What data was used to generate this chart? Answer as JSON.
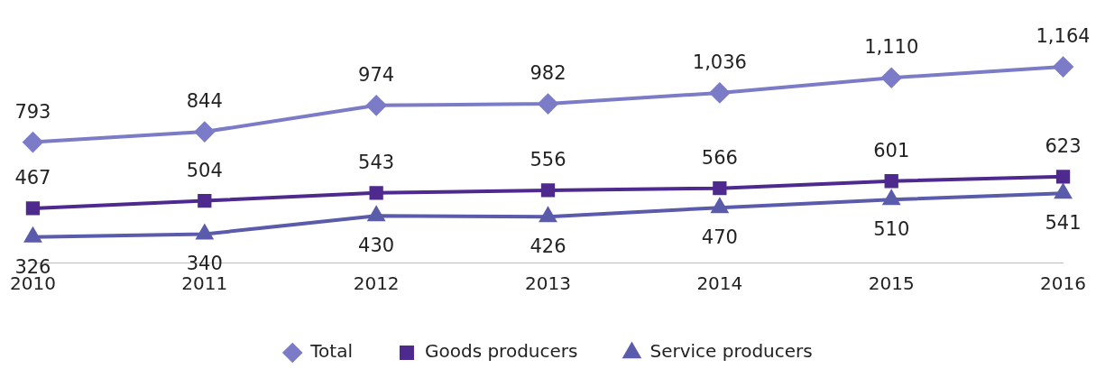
{
  "chart_data": {
    "type": "line",
    "categories": [
      "2010",
      "2011",
      "2012",
      "2013",
      "2014",
      "2015",
      "2016"
    ],
    "series": [
      {
        "name": "Total",
        "color": "#7b7bc8",
        "marker": "diamond",
        "values": [
          793,
          844,
          974,
          982,
          1036,
          1110,
          1164
        ],
        "value_labels": [
          "793",
          "844",
          "974",
          "982",
          "1,036",
          "1,110",
          "1,164"
        ]
      },
      {
        "name": "Goods producers",
        "color": "#4e2a8e",
        "marker": "square",
        "values": [
          467,
          504,
          543,
          556,
          566,
          601,
          623
        ],
        "value_labels": [
          "467",
          "504",
          "543",
          "556",
          "566",
          "601",
          "623"
        ]
      },
      {
        "name": "Service producers",
        "color": "#5b5bab",
        "marker": "triangle",
        "values": [
          326,
          340,
          430,
          426,
          470,
          510,
          541
        ],
        "value_labels": [
          "326",
          "340",
          "430",
          "426",
          "470",
          "510",
          "541"
        ]
      }
    ],
    "tick_labels": "x",
    "grid": false,
    "legend": "bottom"
  }
}
